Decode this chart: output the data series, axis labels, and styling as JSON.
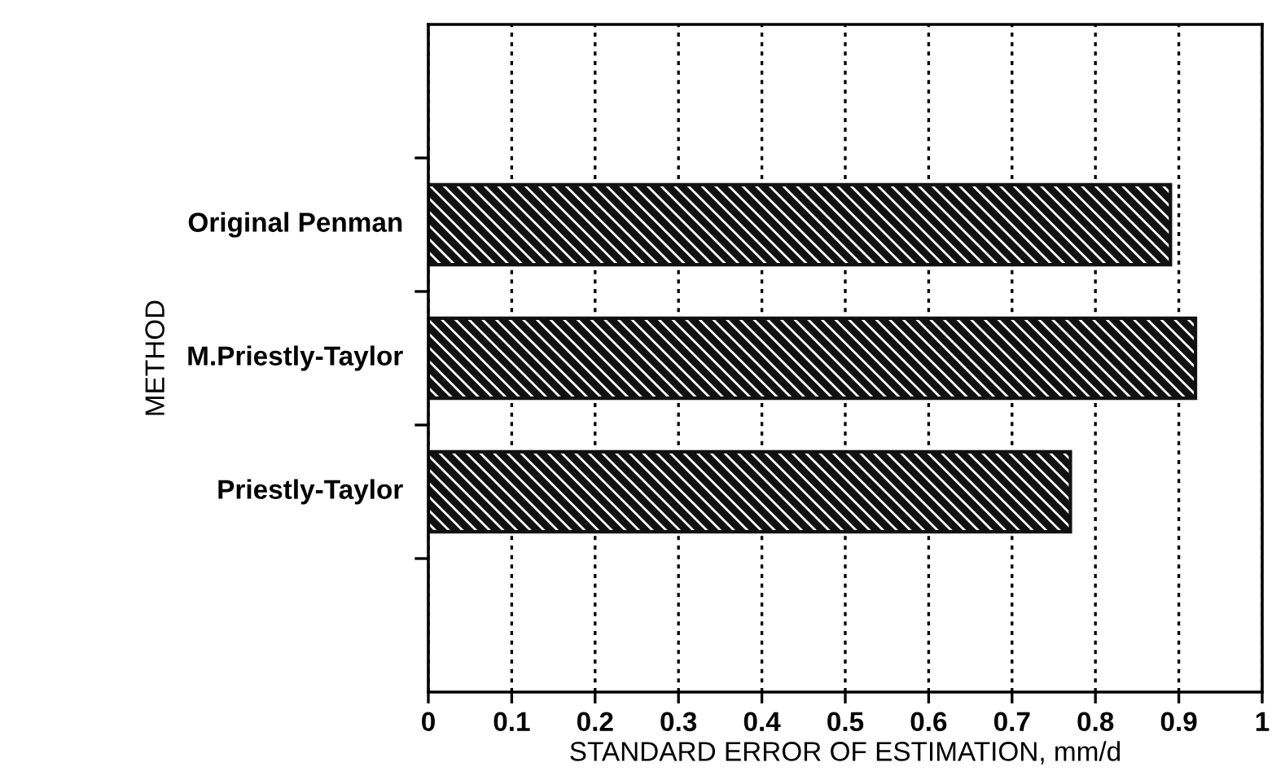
{
  "chart_data": {
    "type": "bar",
    "orientation": "horizontal",
    "xlabel": "STANDARD ERROR OF ESTIMATION, mm/d",
    "ylabel": "METHOD",
    "categories": [
      null,
      "Original Penman",
      "M.Priestly-Taylor",
      "Priestly-Taylor",
      null
    ],
    "values": [
      null,
      0.89,
      0.92,
      0.77,
      null
    ],
    "color": "#111111",
    "xlim": [
      0,
      1
    ],
    "xticks": [
      0,
      0.1,
      0.2,
      0.3,
      0.4,
      0.5,
      0.6,
      0.7,
      0.8,
      0.9,
      1
    ],
    "grid": "x"
  }
}
